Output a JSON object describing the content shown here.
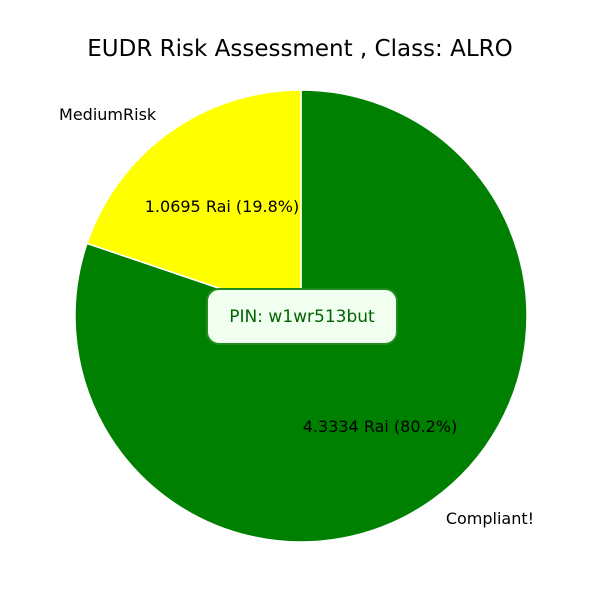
{
  "chart_data": {
    "type": "pie",
    "title": "EUDR Risk Assessment , Class: ALRO",
    "unit": "Rai",
    "slices": [
      {
        "name": "Compliant!",
        "value": 4.3334,
        "percent": 80.2,
        "color": "#008000",
        "label": "4.3334 Rai (80.2%)"
      },
      {
        "name": "MediumRisk",
        "value": 1.0695,
        "percent": 19.8,
        "color": "#ffff00",
        "label": "1.0695 Rai (19.8%)"
      }
    ],
    "start_angle_deg": 90,
    "direction": "clockwise",
    "legend": "none"
  },
  "annotation": {
    "text": "PIN: w1wr513but",
    "text_color": "#006400",
    "background": "#f0fff0",
    "border_color": "#228b22"
  }
}
